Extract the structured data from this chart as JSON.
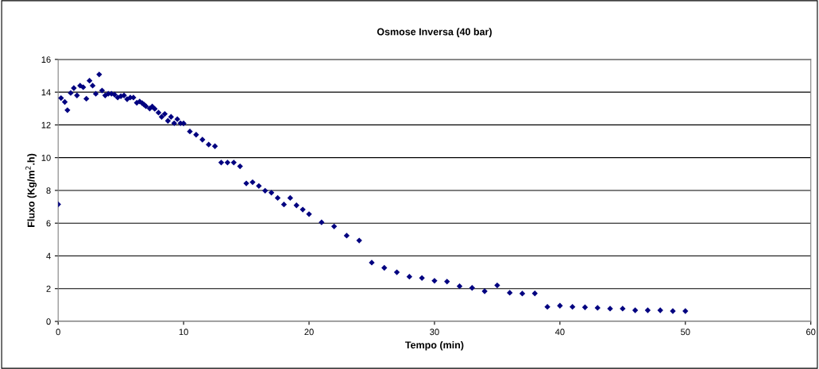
{
  "chart_data": {
    "type": "scatter",
    "title": "Osmose Inversa (40 bar)",
    "xlabel": "Tempo (min)",
    "ylabel": "Fluxo (Kg/m$^{2}$.h)",
    "x": [
      0,
      0.23,
      0.53,
      0.74,
      1.0,
      1.25,
      1.5,
      1.75,
      2.0,
      2.25,
      2.5,
      2.75,
      3.0,
      3.27,
      3.5,
      3.75,
      4.0,
      4.25,
      4.5,
      4.75,
      5.0,
      5.25,
      5.5,
      5.75,
      6.0,
      6.27,
      6.5,
      6.7,
      6.85,
      7.0,
      7.3,
      7.5,
      7.7,
      8.0,
      8.25,
      8.5,
      8.75,
      9.0,
      9.25,
      9.5,
      9.75,
      10.0,
      10.5,
      11.0,
      11.5,
      12.0,
      12.5,
      13.0,
      13.5,
      14.0,
      14.5,
      15.0,
      15.5,
      16.0,
      16.5,
      17.0,
      17.5,
      18.0,
      18.5,
      19.0,
      19.5,
      20.0,
      21.0,
      22.0,
      23.0,
      24.0,
      25.0,
      26.0,
      27.0,
      28.0,
      29.0,
      30.0,
      31.0,
      32.0,
      33.0,
      34.0,
      35.0,
      36.0,
      37.0,
      38.0,
      39.0,
      40.0,
      41.0,
      42.0,
      43.0,
      44.0,
      45.0,
      46.0,
      47.0,
      48.0,
      49.0,
      50.0
    ],
    "values": [
      7.15,
      13.64,
      13.4,
      12.9,
      13.95,
      14.25,
      13.8,
      14.4,
      14.3,
      13.6,
      14.7,
      14.4,
      13.9,
      15.08,
      14.1,
      13.8,
      13.9,
      13.9,
      13.85,
      13.67,
      13.75,
      13.8,
      13.57,
      13.67,
      13.67,
      13.35,
      13.43,
      13.33,
      13.24,
      13.14,
      13.0,
      13.12,
      12.98,
      12.75,
      12.49,
      12.67,
      12.25,
      12.49,
      12.1,
      12.35,
      12.1,
      12.09,
      11.6,
      11.4,
      11.1,
      10.8,
      10.7,
      9.7,
      9.7,
      9.7,
      9.47,
      8.43,
      8.5,
      8.27,
      7.98,
      7.86,
      7.54,
      7.14,
      7.54,
      7.09,
      6.83,
      6.55,
      6.05,
      5.8,
      5.24,
      4.94,
      3.59,
      3.27,
      3.0,
      2.73,
      2.65,
      2.48,
      2.43,
      2.15,
      2.05,
      1.84,
      2.2,
      1.75,
      1.7,
      1.71,
      0.89,
      0.96,
      0.89,
      0.86,
      0.83,
      0.78,
      0.78,
      0.68,
      0.68,
      0.68,
      0.63,
      0.63
    ],
    "color": "#000080",
    "marker": "diamond",
    "xlim": [
      0,
      60
    ],
    "xticks": [
      0,
      10,
      20,
      30,
      40,
      50,
      60
    ],
    "ylim": [
      0,
      16
    ],
    "yticks": [
      0,
      2,
      4,
      6,
      8,
      10,
      12,
      14,
      16
    ],
    "grid": "y",
    "legend": false
  }
}
